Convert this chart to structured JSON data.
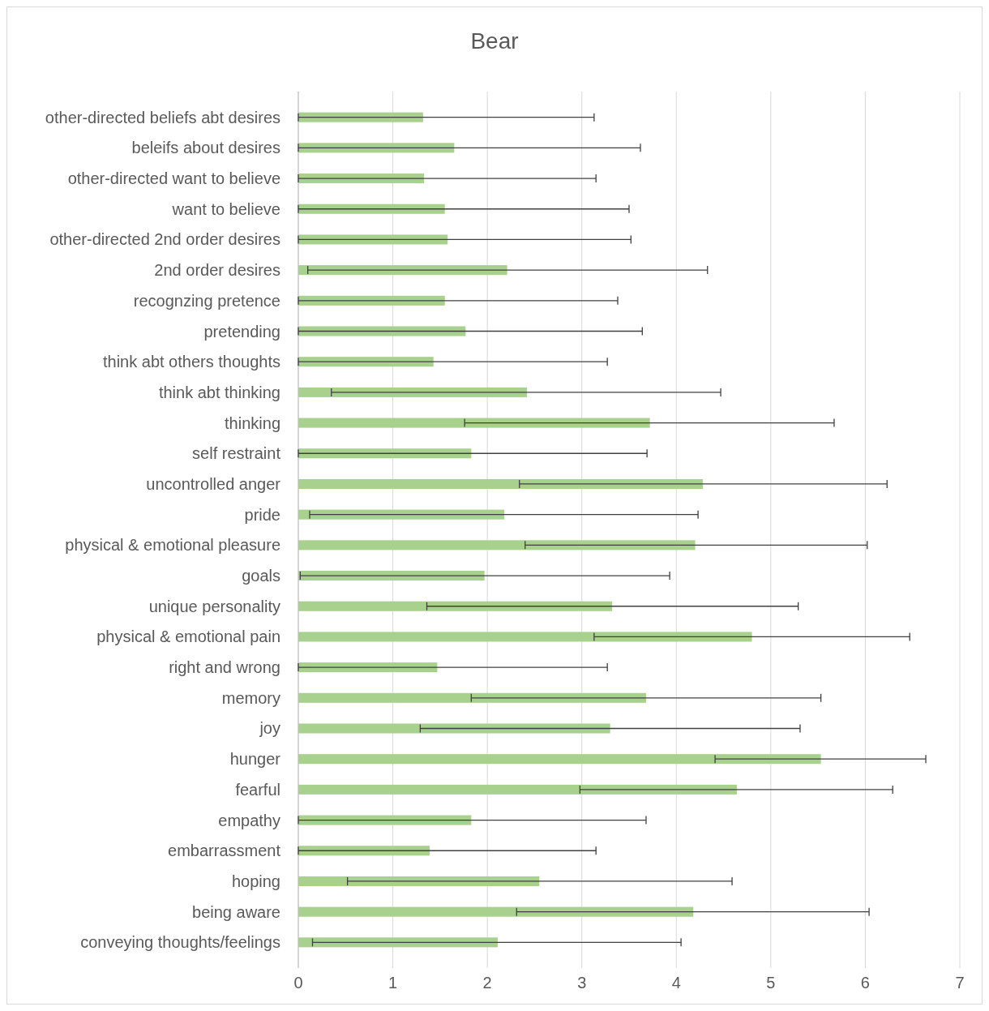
{
  "chart_data": {
    "type": "bar",
    "orientation": "horizontal",
    "title": "Bear",
    "categories": [
      "other-directed beliefs abt desires",
      "beleifs about desires",
      "other-directed want to believe",
      "want to believe",
      "other-directed 2nd order desires",
      "2nd order desires",
      "recognzing pretence",
      "pretending",
      "think abt others thoughts",
      "think abt thinking",
      "thinking",
      "self restraint",
      "uncontrolled anger",
      "pride",
      "physical & emotional pleasure",
      "goals",
      "unique personality",
      "physical & emotional pain",
      "right and wrong",
      "memory",
      "joy",
      "hunger",
      "fearful",
      "empathy",
      "embarrassment",
      "hoping",
      "being aware",
      "conveying thoughts/feelings"
    ],
    "values": [
      1.32,
      1.65,
      1.33,
      1.55,
      1.58,
      2.21,
      1.55,
      1.77,
      1.43,
      2.42,
      3.72,
      1.83,
      4.28,
      2.18,
      4.2,
      1.97,
      3.32,
      4.8,
      1.47,
      3.68,
      3.3,
      5.53,
      4.64,
      1.83,
      1.39,
      2.55,
      4.18,
      2.11
    ],
    "errors": [
      [
        0,
        3.13
      ],
      [
        0,
        3.62
      ],
      [
        0,
        3.15
      ],
      [
        0,
        3.5
      ],
      [
        0,
        3.52
      ],
      [
        0.1,
        4.33
      ],
      [
        0,
        3.38
      ],
      [
        0,
        3.64
      ],
      [
        0,
        3.27
      ],
      [
        0.35,
        4.47
      ],
      [
        1.76,
        5.67
      ],
      [
        0,
        3.69
      ],
      [
        2.34,
        6.23
      ],
      [
        0.12,
        4.23
      ],
      [
        2.4,
        6.02
      ],
      [
        0.02,
        3.93
      ],
      [
        1.36,
        5.29
      ],
      [
        3.13,
        6.47
      ],
      [
        0,
        3.27
      ],
      [
        1.83,
        5.53
      ],
      [
        1.29,
        5.31
      ],
      [
        4.41,
        6.64
      ],
      [
        2.98,
        6.29
      ],
      [
        0,
        3.68
      ],
      [
        0,
        3.15
      ],
      [
        0.52,
        4.59
      ],
      [
        2.31,
        6.04
      ],
      [
        0.15,
        4.05
      ]
    ],
    "color": "#a9d18e",
    "xlim": [
      0,
      7
    ],
    "xticks": [
      0,
      1,
      2,
      3,
      4,
      5,
      6,
      7
    ],
    "grid": "x"
  }
}
